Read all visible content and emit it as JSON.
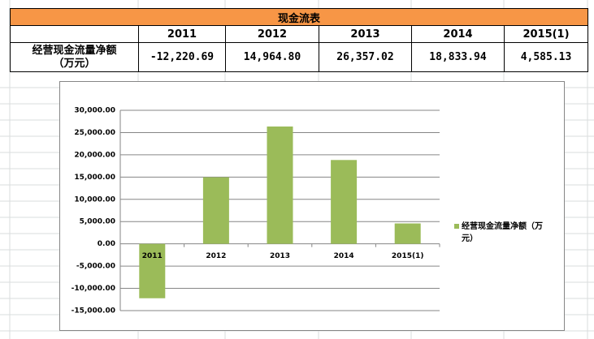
{
  "table": {
    "title": "现金流表",
    "header": [
      "2011",
      "2012",
      "2013",
      "2014",
      "2015(1)"
    ],
    "row_label": "经营现金流量净额（万元）",
    "row": [
      "-12,220.69",
      "14,964.80",
      "26,357.02",
      "18,833.94",
      "4,585.13"
    ]
  },
  "chart_data": {
    "type": "bar",
    "categories": [
      "2011",
      "2012",
      "2013",
      "2014",
      "2015(1)"
    ],
    "series": [
      {
        "name": "经营现金流量净额（万元）",
        "color": "#9bbb59",
        "values": [
          -12220.69,
          14964.8,
          26357.02,
          18833.94,
          4585.13
        ]
      }
    ],
    "ylim": [
      -15000,
      30000
    ],
    "yticks": [
      {
        "value": -15000,
        "label": "-15,000.00"
      },
      {
        "value": -10000,
        "label": "-10,000.00"
      },
      {
        "value": -5000,
        "label": "-5,000.00"
      },
      {
        "value": 0,
        "label": "0.00"
      },
      {
        "value": 5000,
        "label": "5,000.00"
      },
      {
        "value": 10000,
        "label": "10,000.00"
      },
      {
        "value": 15000,
        "label": "15,000.00"
      },
      {
        "value": 20000,
        "label": "20,000.00"
      },
      {
        "value": 25000,
        "label": "25,000.00"
      },
      {
        "value": 30000,
        "label": "30,000.00"
      }
    ],
    "grid": true,
    "legend": "right"
  }
}
